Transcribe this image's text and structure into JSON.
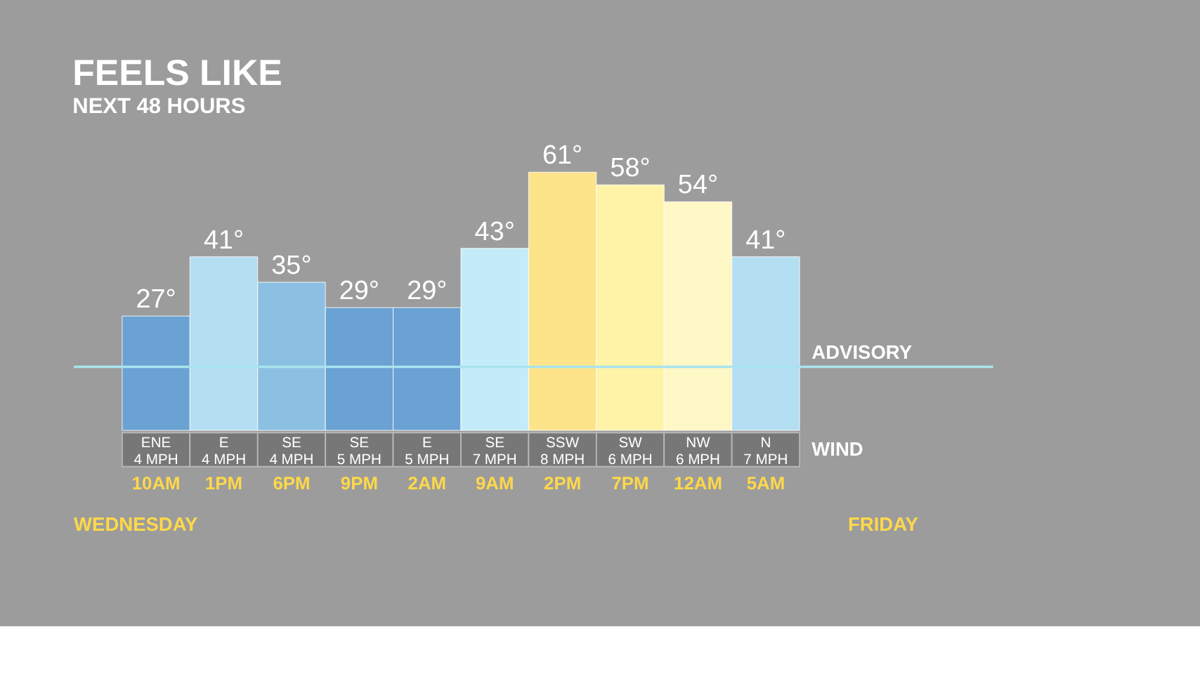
{
  "chart_data": {
    "type": "bar",
    "title": "FEELS LIKE",
    "subtitle": "NEXT 48 HOURS",
    "categories": [
      "10AM",
      "1PM",
      "6PM",
      "9PM",
      "2AM",
      "9AM",
      "2PM",
      "7PM",
      "12AM",
      "5AM"
    ],
    "values": [
      27,
      41,
      35,
      29,
      29,
      43,
      61,
      58,
      54,
      41
    ],
    "colors": [
      "#6aa2d4",
      "#b4def2",
      "#8cc0e2",
      "#6aa2d4",
      "#6aa2d4",
      "#c4ecf8",
      "#fde48a",
      "#fef3a6",
      "#fef7c6",
      "#b4def2"
    ],
    "value_labels": [
      "27°",
      "41°",
      "35°",
      "29°",
      "29°",
      "43°",
      "61°",
      "58°",
      "54°",
      "41°"
    ],
    "ref_lines": [
      {
        "axis": "y",
        "value": 15,
        "label": "ADVISORY",
        "color": "#a8e4ee"
      }
    ],
    "annotations": [
      "WIND",
      "WEDNESDAY",
      "FRIDAY",
      "ENE 4 MPH",
      "E 4 MPH",
      "SE 4 MPH",
      "SE 5 MPH",
      "E 5 MPH",
      "SE 7 MPH",
      "SSW 8 MPH",
      "SW 6 MPH",
      "NW 6 MPH",
      "N 7 MPH"
    ],
    "tick_labels": "x",
    "grid": false
  }
}
